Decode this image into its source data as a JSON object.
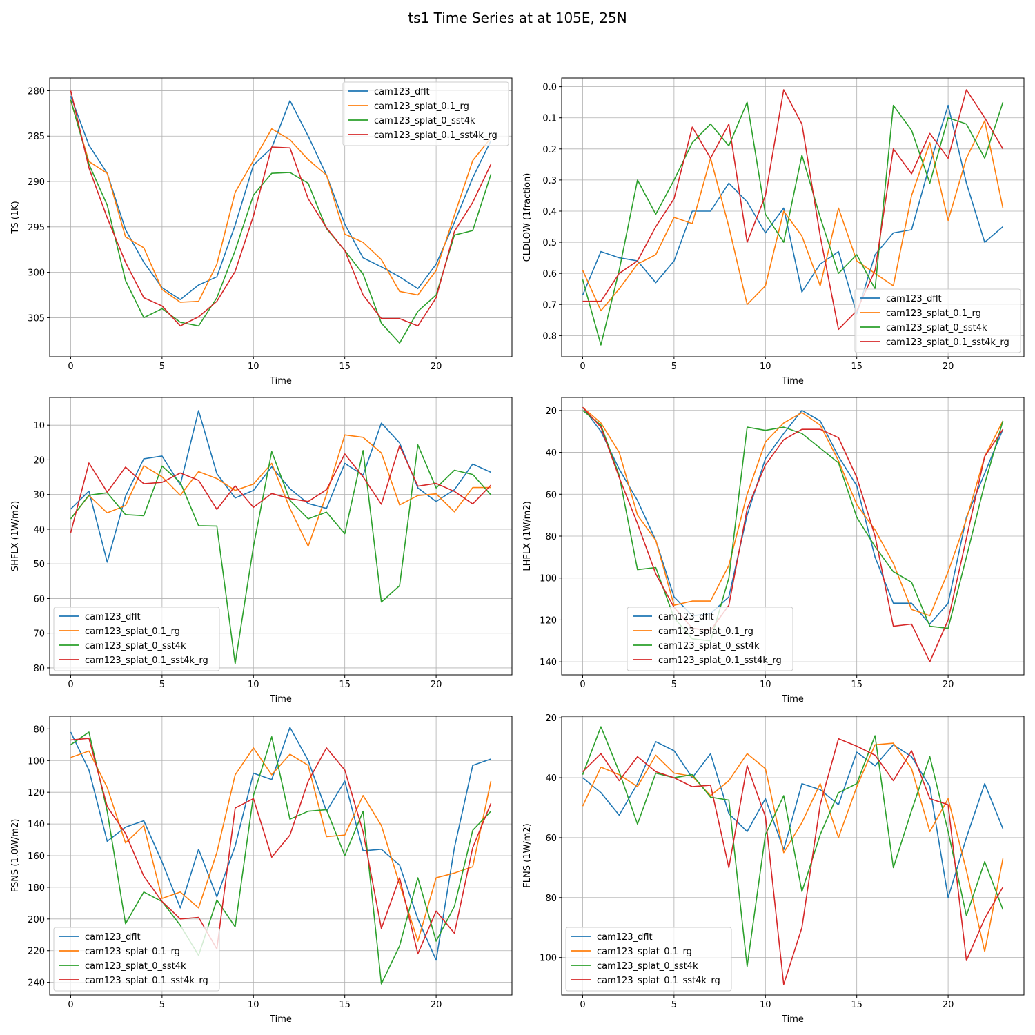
{
  "figure": {
    "title": "ts1 Time Series at at 105E, 25N"
  },
  "series_colors": {
    "cam123_dflt": "#1f77b4",
    "cam123_splat_0.1_rg": "#ff7f0e",
    "cam123_splat_0_sst4k": "#2ca02c",
    "cam123_splat_0.1_sst4k_rg": "#d62728"
  },
  "chart_data": [
    {
      "type": "line",
      "xlabel": "Time",
      "ylabel": "TS (1K)",
      "ylim": [
        278.6,
        309.3
      ],
      "inverted_y": true,
      "yticks": [
        280,
        285,
        290,
        295,
        300,
        305
      ],
      "xlim": [
        -1.15,
        24.15
      ],
      "xticks": [
        0,
        5,
        10,
        15,
        20
      ],
      "legend_loc": "upper-right",
      "grid": true,
      "x": [
        0,
        1,
        2,
        3,
        4,
        5,
        6,
        7,
        8,
        9,
        10,
        11,
        12,
        13,
        14,
        15,
        16,
        17,
        18,
        19,
        20,
        21,
        22,
        23
      ],
      "series": [
        {
          "name": "cam123_dflt",
          "values": [
            280.6,
            286.0,
            289.1,
            295.3,
            298.9,
            301.7,
            303.0,
            301.4,
            300.5,
            294.8,
            288.2,
            286.3,
            281.1,
            285.0,
            289.3,
            294.7,
            298.4,
            299.4,
            300.5,
            301.8,
            299.1,
            294.5,
            289.6,
            285.5
          ]
        },
        {
          "name": "cam123_splat_0.1_rg",
          "values": [
            281.1,
            287.8,
            289.1,
            296.1,
            297.3,
            301.9,
            303.3,
            303.2,
            299.1,
            291.2,
            287.7,
            284.2,
            285.4,
            287.6,
            289.3,
            295.8,
            296.7,
            298.6,
            302.1,
            302.5,
            299.8,
            293.7,
            287.7,
            285.2
          ]
        },
        {
          "name": "cam123_splat_0_sst4k",
          "values": [
            281.0,
            288.1,
            292.6,
            300.9,
            305.0,
            304.0,
            305.5,
            305.9,
            302.8,
            297.6,
            291.5,
            289.1,
            289.0,
            290.2,
            295.2,
            297.6,
            300.2,
            305.6,
            307.8,
            304.3,
            302.5,
            295.9,
            295.4,
            289.2
          ]
        },
        {
          "name": "cam123_splat_0.1_sst4k_rg",
          "values": [
            280.0,
            288.5,
            294.0,
            298.9,
            302.8,
            303.7,
            305.9,
            304.9,
            303.2,
            299.9,
            293.8,
            286.2,
            286.3,
            291.9,
            295.1,
            297.6,
            302.5,
            305.1,
            305.1,
            305.9,
            302.8,
            295.5,
            292.3,
            288.1
          ]
        }
      ]
    },
    {
      "type": "line",
      "xlabel": "Time",
      "ylabel": "CLDLOW (1fraction)",
      "ylim": [
        -0.028,
        0.868
      ],
      "inverted_y": true,
      "yticks": [
        0.0,
        0.1,
        0.2,
        0.3,
        0.4,
        0.5,
        0.6,
        0.7,
        0.8
      ],
      "ytick_labels": [
        "0.0",
        "0.1",
        "0.2",
        "0.3",
        "0.4",
        "0.5",
        "0.6",
        "0.7",
        "0.8"
      ],
      "xlim": [
        -1.15,
        24.15
      ],
      "xticks": [
        0,
        5,
        10,
        15,
        20
      ],
      "legend_loc": "lower-right",
      "grid": true,
      "x": [
        0,
        1,
        2,
        3,
        4,
        5,
        6,
        7,
        8,
        9,
        10,
        11,
        12,
        13,
        14,
        15,
        16,
        17,
        18,
        19,
        20,
        21,
        22,
        23
      ],
      "series": [
        {
          "name": "cam123_dflt",
          "values": [
            0.67,
            0.53,
            0.55,
            0.56,
            0.63,
            0.56,
            0.4,
            0.4,
            0.31,
            0.37,
            0.47,
            0.39,
            0.66,
            0.57,
            0.53,
            0.73,
            0.54,
            0.47,
            0.46,
            0.25,
            0.06,
            0.31,
            0.5,
            0.45
          ]
        },
        {
          "name": "cam123_splat_0.1_rg",
          "values": [
            0.59,
            0.72,
            0.65,
            0.57,
            0.54,
            0.42,
            0.44,
            0.23,
            0.45,
            0.7,
            0.64,
            0.4,
            0.48,
            0.64,
            0.39,
            0.56,
            0.6,
            0.64,
            0.35,
            0.18,
            0.43,
            0.23,
            0.11,
            0.39
          ]
        },
        {
          "name": "cam123_splat_0_sst4k",
          "values": [
            0.62,
            0.83,
            0.59,
            0.3,
            0.41,
            0.3,
            0.18,
            0.12,
            0.19,
            0.05,
            0.41,
            0.5,
            0.22,
            0.42,
            0.6,
            0.54,
            0.65,
            0.06,
            0.14,
            0.31,
            0.1,
            0.12,
            0.23,
            0.05
          ]
        },
        {
          "name": "cam123_splat_0.1_sst4k_rg",
          "values": [
            0.69,
            0.69,
            0.6,
            0.56,
            0.45,
            0.36,
            0.13,
            0.23,
            0.12,
            0.5,
            0.35,
            0.01,
            0.12,
            0.48,
            0.78,
            0.72,
            0.59,
            0.2,
            0.28,
            0.15,
            0.23,
            0.01,
            0.1,
            0.2
          ]
        }
      ]
    },
    {
      "type": "line",
      "xlabel": "Time",
      "ylabel": "SHFLX (1W/m2)",
      "ylim": [
        2.0,
        82.0
      ],
      "inverted_y": true,
      "yticks": [
        10,
        20,
        30,
        40,
        50,
        60,
        70,
        80
      ],
      "xlim": [
        -1.15,
        24.15
      ],
      "xticks": [
        0,
        5,
        10,
        15,
        20
      ],
      "legend_loc": "lower-left",
      "grid": true,
      "x": [
        0,
        1,
        2,
        3,
        4,
        5,
        6,
        7,
        8,
        9,
        10,
        11,
        12,
        13,
        14,
        15,
        16,
        17,
        18,
        19,
        20,
        21,
        22,
        23
      ],
      "series": [
        {
          "name": "cam123_dflt",
          "values": [
            34.2,
            29.0,
            49.5,
            30.5,
            19.7,
            18.9,
            27.2,
            5.8,
            24.0,
            31.0,
            28.8,
            22.0,
            28.3,
            32.6,
            34.0,
            21.0,
            24.4,
            9.4,
            15.1,
            28.1,
            32.0,
            28.6,
            21.2,
            23.6
          ]
        },
        {
          "name": "cam123_splat_0.1_rg",
          "values": [
            37.0,
            30.3,
            35.3,
            33.2,
            21.7,
            24.9,
            30.2,
            23.4,
            25.4,
            28.8,
            27.0,
            21.0,
            34.0,
            44.9,
            30.0,
            12.8,
            13.5,
            18.0,
            33.0,
            30.3,
            29.8,
            35.0,
            28.0,
            28.0
          ]
        },
        {
          "name": "cam123_splat_0_sst4k",
          "values": [
            37.0,
            30.2,
            29.5,
            35.8,
            36.1,
            21.8,
            26.5,
            39.0,
            39.1,
            78.8,
            45.0,
            17.6,
            31.7,
            37.0,
            35.1,
            41.3,
            17.3,
            61.0,
            56.3,
            15.7,
            28.1,
            23.0,
            24.2,
            30.1
          ]
        },
        {
          "name": "cam123_splat_0.1_sst4k_rg",
          "values": [
            41.0,
            20.9,
            29.3,
            22.1,
            26.9,
            26.5,
            23.8,
            25.9,
            34.3,
            27.5,
            33.7,
            29.7,
            31.2,
            32.0,
            28.6,
            18.3,
            24.9,
            32.8,
            15.9,
            27.6,
            26.8,
            29.1,
            32.7,
            27.3
          ]
        }
      ]
    },
    {
      "type": "line",
      "xlabel": "Time",
      "ylabel": "LHFLX (1W/m2)",
      "ylim": [
        13.8,
        146.2
      ],
      "inverted_y": true,
      "yticks": [
        20,
        40,
        60,
        80,
        100,
        120,
        140
      ],
      "xlim": [
        -1.15,
        24.15
      ],
      "xticks": [
        0,
        5,
        10,
        15,
        20
      ],
      "legend_loc": "lower-center",
      "grid": true,
      "x": [
        0,
        1,
        2,
        3,
        4,
        5,
        6,
        7,
        8,
        9,
        10,
        11,
        12,
        13,
        14,
        15,
        16,
        17,
        18,
        19,
        20,
        21,
        22,
        23
      ],
      "series": [
        {
          "name": "cam123_dflt",
          "values": [
            18.5,
            30.0,
            48.0,
            63.0,
            82.0,
            109.0,
            118.0,
            117.0,
            109.0,
            70.0,
            43.0,
            31.0,
            20.0,
            25.0,
            42.0,
            56.0,
            90.0,
            112.0,
            112.0,
            122.0,
            112.0,
            71.0,
            50.0,
            29.0
          ]
        },
        {
          "name": "cam123_splat_0.1_rg",
          "values": [
            18.5,
            26.0,
            40.0,
            70.0,
            82.0,
            113.0,
            111.0,
            111.0,
            94.0,
            60.0,
            35.0,
            26.0,
            21.0,
            27.0,
            44.0,
            65.0,
            77.0,
            93.0,
            115.0,
            118.0,
            97.0,
            72.0,
            42.0,
            25.0
          ]
        },
        {
          "name": "cam123_splat_0_sst4k",
          "values": [
            20.0,
            27.0,
            51.0,
            96.0,
            95.0,
            119.0,
            129.0,
            130.0,
            100.0,
            28.0,
            29.5,
            28.0,
            31.0,
            38.0,
            45.0,
            71.0,
            85.0,
            97.0,
            102.0,
            123.0,
            124.0,
            90.0,
            55.0,
            25.0
          ]
        },
        {
          "name": "cam123_splat_0.1_sst4k_rg",
          "values": [
            18.5,
            28.0,
            52.0,
            74.0,
            98.0,
            114.0,
            124.0,
            125.0,
            113.0,
            67.0,
            46.0,
            34.0,
            29.0,
            29.0,
            33.0,
            52.0,
            80.0,
            123.0,
            122.0,
            140.0,
            120.0,
            81.0,
            42.0,
            29.0
          ]
        }
      ]
    },
    {
      "type": "line",
      "xlabel": "Time",
      "ylabel": "FSNS (1.0W/m2)",
      "ylim": [
        72.0,
        248.0
      ],
      "inverted_y": true,
      "yticks": [
        80,
        100,
        120,
        140,
        160,
        180,
        200,
        220,
        240
      ],
      "xlim": [
        -1.15,
        24.15
      ],
      "xticks": [
        0,
        5,
        10,
        15,
        20
      ],
      "legend_loc": "lower-left",
      "grid": true,
      "x": [
        0,
        1,
        2,
        3,
        4,
        5,
        6,
        7,
        8,
        9,
        10,
        11,
        12,
        13,
        14,
        15,
        16,
        17,
        18,
        19,
        20,
        21,
        22,
        23
      ],
      "series": [
        {
          "name": "cam123_dflt",
          "values": [
            82.0,
            106.0,
            151.0,
            142.0,
            138.0,
            164.0,
            193.0,
            156.0,
            186.0,
            154.0,
            108.0,
            112.0,
            79.0,
            100.0,
            132.0,
            113.0,
            157.0,
            156.0,
            166.0,
            200.0,
            226.0,
            155.0,
            103.0,
            99.0
          ]
        },
        {
          "name": "cam123_splat_0.1_rg",
          "values": [
            98.0,
            94.0,
            117.0,
            152.0,
            141.0,
            187.0,
            183.0,
            193.0,
            158.0,
            109.0,
            92.0,
            109.0,
            96.0,
            103.0,
            148.0,
            147.0,
            122.0,
            141.0,
            178.0,
            214.0,
            174.0,
            171.0,
            167.0,
            113.0
          ]
        },
        {
          "name": "cam123_splat_0_sst4k",
          "values": [
            90.0,
            82.0,
            132.0,
            203.0,
            183.0,
            189.0,
            204.0,
            223.0,
            188.0,
            205.0,
            122.0,
            85.0,
            137.0,
            132.0,
            131.0,
            160.0,
            132.0,
            241.0,
            217.0,
            174.0,
            214.0,
            192.0,
            144.0,
            132.0
          ]
        },
        {
          "name": "cam123_splat_0.1_sst4k_rg",
          "values": [
            87.0,
            86.0,
            129.0,
            146.0,
            173.0,
            189.0,
            200.0,
            199.0,
            219.0,
            130.0,
            124.0,
            161.0,
            147.0,
            113.0,
            92.0,
            106.0,
            145.0,
            206.0,
            174.0,
            222.0,
            195.0,
            209.0,
            155.0,
            127.0
          ]
        }
      ]
    },
    {
      "type": "line",
      "xlabel": "Time",
      "ylabel": "FLNS (1W/m2)",
      "ylim": [
        19.5,
        112.5
      ],
      "inverted_y": true,
      "yticks": [
        20,
        40,
        60,
        80,
        100
      ],
      "xlim": [
        -1.15,
        24.15
      ],
      "xticks": [
        0,
        5,
        10,
        15,
        20
      ],
      "legend_loc": "lower-left",
      "grid": true,
      "x": [
        0,
        1,
        2,
        3,
        4,
        5,
        6,
        7,
        8,
        9,
        10,
        11,
        12,
        13,
        14,
        15,
        16,
        17,
        18,
        19,
        20,
        21,
        22,
        23
      ],
      "series": [
        {
          "name": "cam123_dflt",
          "values": [
            40.0,
            45.0,
            52.5,
            42.0,
            28.0,
            31.0,
            40.0,
            32.0,
            52.0,
            58.0,
            47.0,
            64.0,
            42.0,
            44.0,
            49.0,
            31.5,
            36.0,
            29.0,
            33.0,
            43.0,
            80.0,
            60.0,
            42.0,
            57.0
          ]
        },
        {
          "name": "cam123_splat_0.1_rg",
          "values": [
            49.5,
            36.5,
            39.0,
            43.0,
            32.5,
            38.5,
            39.5,
            46.0,
            41.0,
            32.0,
            37.0,
            65.0,
            55.0,
            42.0,
            60.0,
            43.0,
            29.0,
            28.5,
            37.0,
            58.0,
            47.0,
            71.0,
            98.0,
            67.0
          ]
        },
        {
          "name": "cam123_splat_0_sst4k",
          "values": [
            39.0,
            23.0,
            38.0,
            55.5,
            38.5,
            40.0,
            39.0,
            46.5,
            47.5,
            103.0,
            59.0,
            46.0,
            78.0,
            59.0,
            45.0,
            42.0,
            26.0,
            70.0,
            51.0,
            33.0,
            58.0,
            86.0,
            68.0,
            84.0
          ]
        },
        {
          "name": "cam123_splat_0.1_sst4k_rg",
          "values": [
            38.0,
            32.0,
            41.0,
            33.0,
            38.0,
            40.0,
            43.0,
            42.5,
            70.0,
            36.0,
            53.0,
            109.0,
            90.0,
            49.0,
            27.0,
            29.5,
            32.5,
            41.0,
            31.0,
            47.0,
            49.0,
            101.0,
            87.0,
            76.5
          ]
        }
      ]
    }
  ]
}
